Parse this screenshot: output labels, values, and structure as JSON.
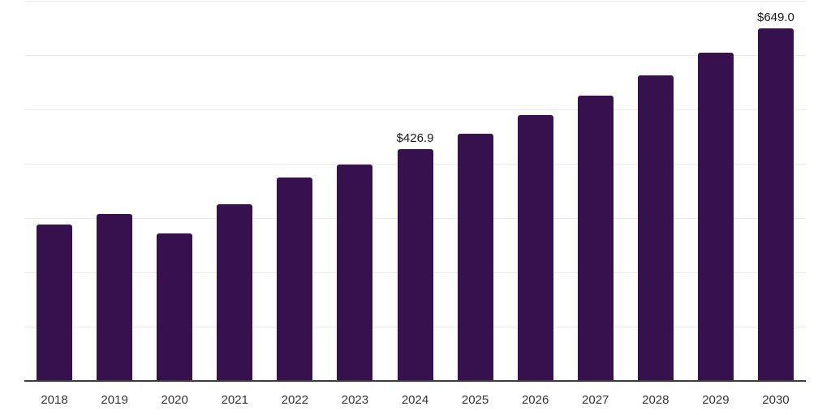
{
  "chart_data": {
    "type": "bar",
    "title": "",
    "xlabel": "",
    "ylabel": "",
    "categories": [
      "2018",
      "2019",
      "2020",
      "2021",
      "2022",
      "2023",
      "2024",
      "2025",
      "2026",
      "2027",
      "2028",
      "2029",
      "2030"
    ],
    "values": [
      288,
      307,
      272,
      326,
      374,
      399,
      426.9,
      455,
      489,
      525,
      562,
      604,
      649.0
    ],
    "point_labels": [
      "",
      "",
      "",
      "",
      "",
      "",
      "$426.9",
      "",
      "",
      "",
      "",
      "",
      "$649.0"
    ],
    "ylim": [
      0,
      700
    ],
    "gridline_step": 100,
    "grid": "horizontal-only",
    "legend": "none",
    "colors": {
      "bar": "#36114d",
      "gridline": "#ededed",
      "axis": "#3d3d3d",
      "tick_label": "#333333",
      "data_label": "#1a1a1a",
      "background": "#ffffff"
    }
  }
}
